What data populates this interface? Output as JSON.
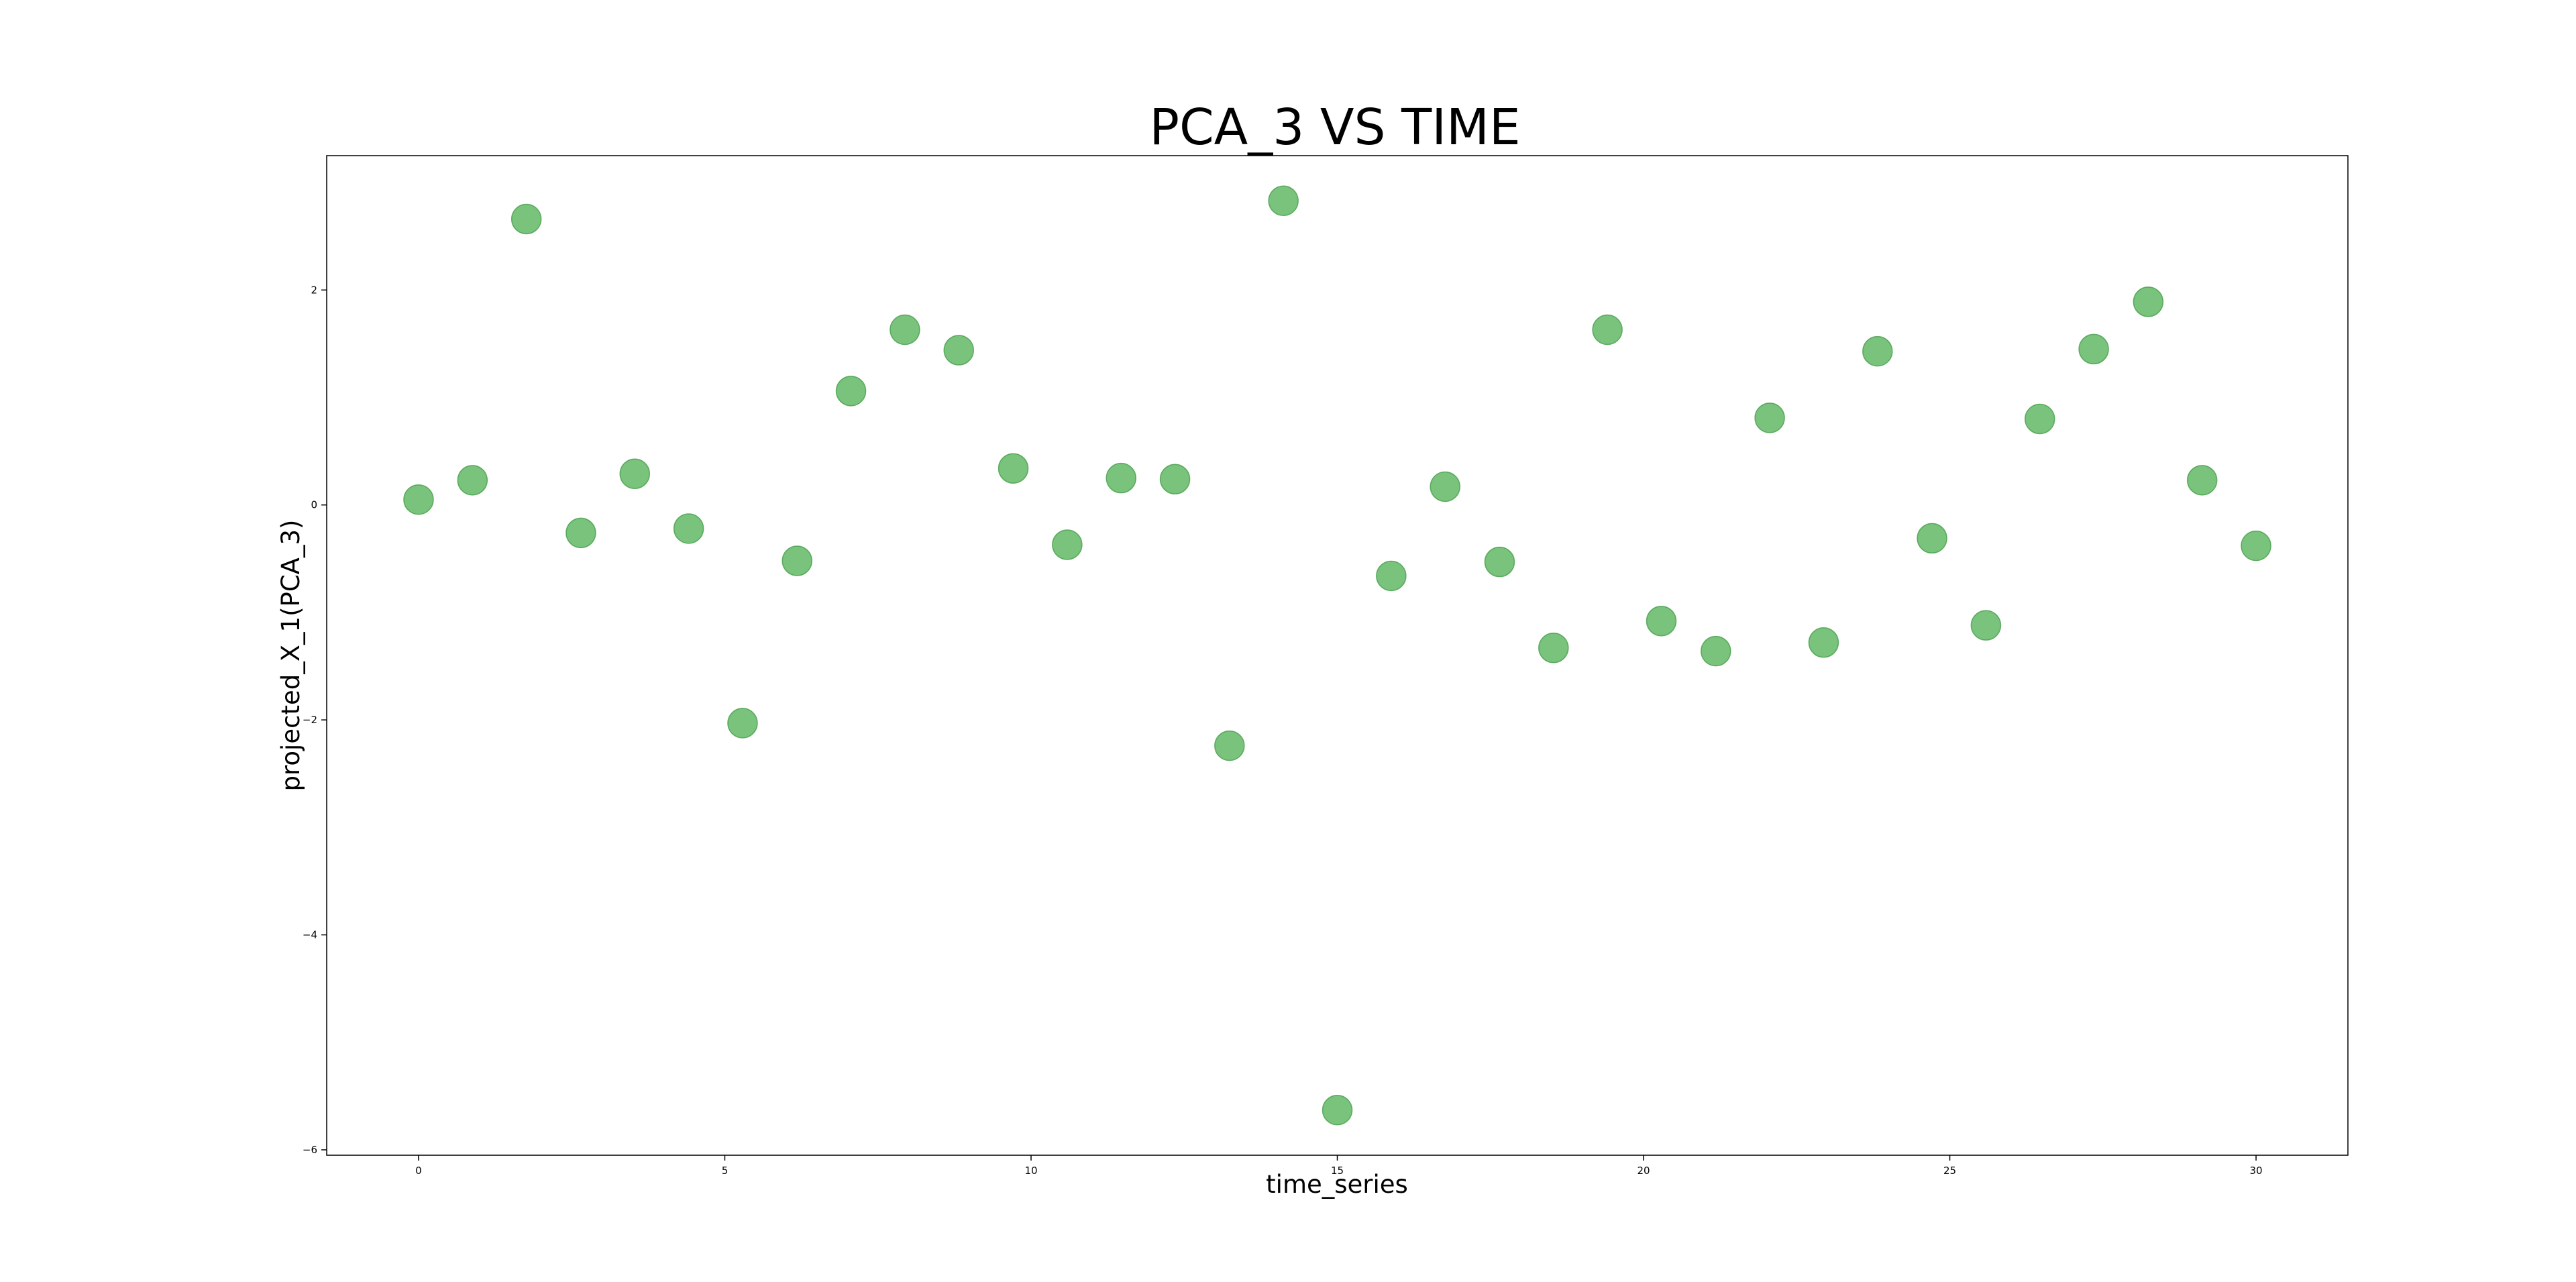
{
  "chart_data": {
    "type": "scatter",
    "title": "PCA_3 VS TIME",
    "xlabel": "time_series",
    "ylabel": "projected_X_1(PCA_3)",
    "xlim": [
      -1.5,
      31.5
    ],
    "ylim": [
      -6.05,
      3.25
    ],
    "x_ticks": [
      0,
      5,
      10,
      15,
      20,
      25,
      30
    ],
    "y_ticks": [
      -6,
      -4,
      -2,
      0,
      2
    ],
    "x_tick_labels": [
      "0",
      "5",
      "10",
      "15",
      "20",
      "25",
      "30"
    ],
    "y_tick_labels": [
      "−6",
      "−4",
      "−2",
      "0",
      "2"
    ],
    "grid": false,
    "marker_color": "#4CAF50",
    "marker_edge_color": "#3E9A41",
    "marker_alpha": 0.75,
    "series": [
      {
        "x": [
          0,
          0.88,
          1.76,
          2.65,
          3.53,
          4.41,
          5.29,
          6.18,
          7.06,
          7.94,
          8.82,
          9.71,
          10.59,
          11.47,
          12.35,
          13.24,
          14.12,
          15.0,
          15.88,
          16.76,
          17.65,
          18.53,
          19.41,
          20.29,
          21.18,
          22.06,
          22.94,
          23.82,
          24.71,
          25.59,
          26.47,
          27.35,
          28.24,
          29.12,
          30.0
        ],
        "y": [
          0.05,
          0.23,
          2.66,
          -0.26,
          0.29,
          -0.22,
          -2.03,
          -0.52,
          1.06,
          1.63,
          1.44,
          0.34,
          -0.37,
          0.25,
          0.24,
          -2.24,
          2.83,
          -5.63,
          -0.66,
          0.17,
          -0.53,
          -1.33,
          1.63,
          -1.08,
          -1.36,
          0.81,
          -1.28,
          1.43,
          -0.31,
          -1.12,
          0.8,
          1.45,
          1.89,
          0.23,
          -0.38
        ]
      }
    ]
  }
}
